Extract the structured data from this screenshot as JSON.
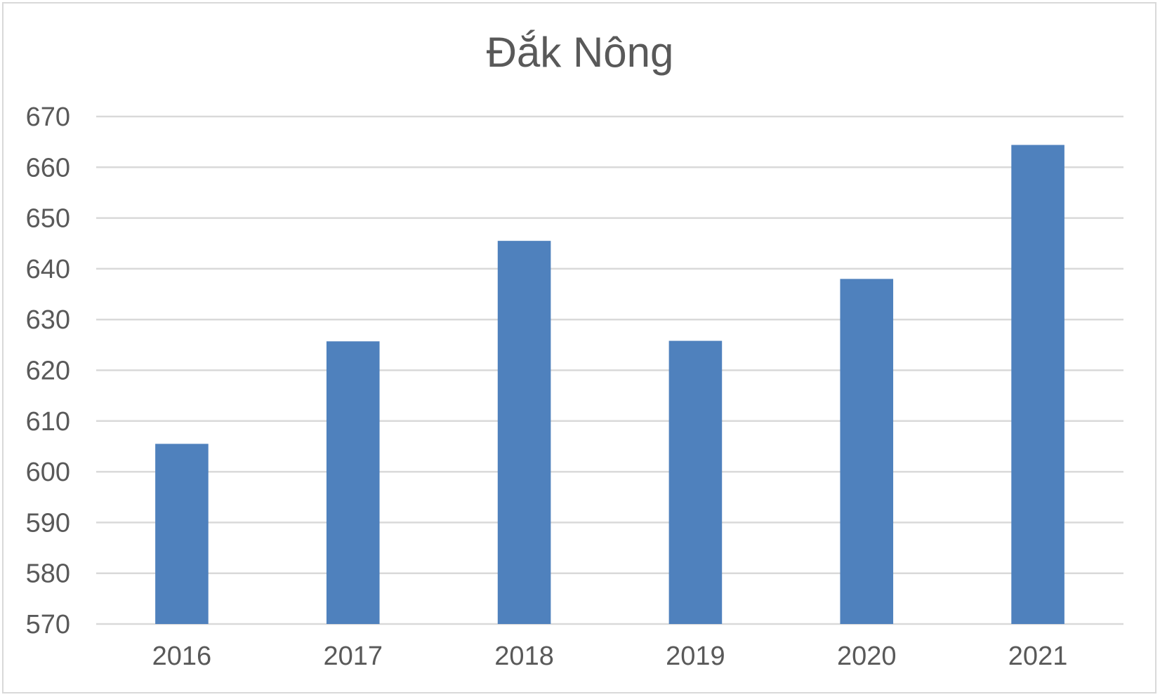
{
  "chart_data": {
    "type": "bar",
    "title": "Đắk Nông",
    "xlabel": "",
    "ylabel": "",
    "categories": [
      "2016",
      "2017",
      "2018",
      "2019",
      "2020",
      "2021"
    ],
    "values": [
      605.5,
      625.7,
      645.5,
      625.8,
      638.0,
      664.4
    ],
    "ylim": [
      570,
      670
    ],
    "yticks": [
      570,
      580,
      590,
      600,
      610,
      620,
      630,
      640,
      650,
      660,
      670
    ],
    "grid": true,
    "legend": "none",
    "colors": {
      "bar": "#4f81bd",
      "grid": "#d9d9d9",
      "text": "#595959"
    }
  }
}
